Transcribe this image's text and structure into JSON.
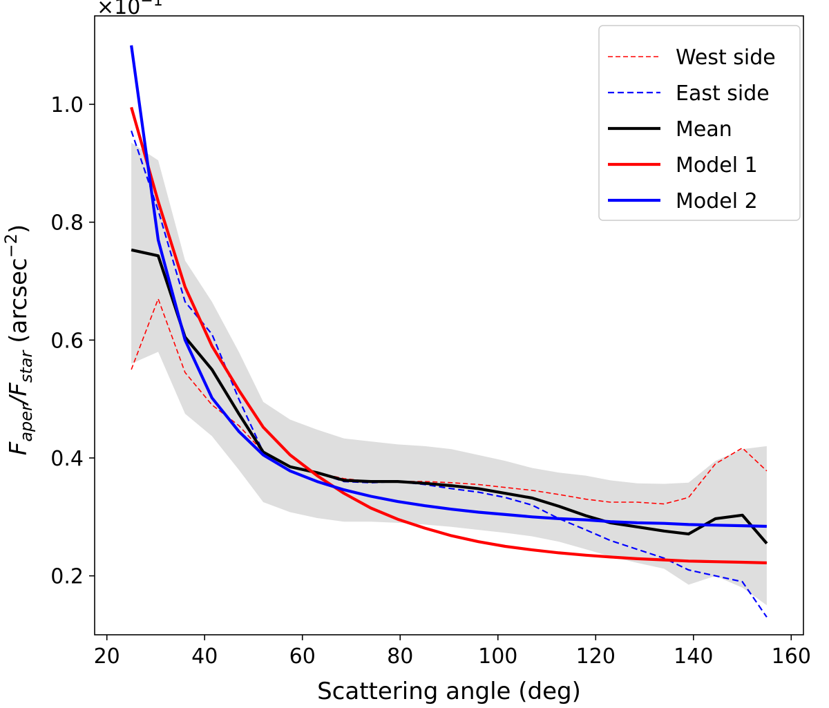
{
  "chart_data": {
    "type": "line",
    "xlabel": "Scattering angle (deg)",
    "ylabel_main": "F",
    "ylabel_sub1": "aper",
    "ylabel_mid": "/F",
    "ylabel_sub2": "star",
    "ylabel_unit_prefix": " (arcsec",
    "ylabel_unit_exp": "−2",
    "ylabel_unit_suffix": ")",
    "offset_base": "×10",
    "offset_exp": "−1",
    "xlim": [
      17.5,
      162.5
    ],
    "ylim": [
      0.1,
      1.15
    ],
    "x_ticks": [
      20,
      40,
      60,
      80,
      100,
      120,
      140,
      160
    ],
    "x_tick_labels": [
      "20",
      "40",
      "60",
      "80",
      "100",
      "120",
      "140",
      "160"
    ],
    "y_ticks": [
      0.2,
      0.4,
      0.6,
      0.8,
      1.0
    ],
    "y_tick_labels": [
      "0.2",
      "0.4",
      "0.6",
      "0.8",
      "1.0"
    ],
    "band": {
      "color": "#dedede",
      "x": [
        25,
        30.5,
        36,
        41.5,
        47,
        52,
        57.5,
        63,
        68.5,
        74,
        79.5,
        85,
        90.5,
        96,
        101.5,
        107,
        112.5,
        118,
        123,
        128.5,
        134,
        139,
        144.5,
        150,
        155
      ],
      "upper": [
        0.935,
        0.905,
        0.735,
        0.665,
        0.58,
        0.495,
        0.465,
        0.448,
        0.433,
        0.428,
        0.423,
        0.42,
        0.415,
        0.405,
        0.395,
        0.383,
        0.375,
        0.37,
        0.362,
        0.357,
        0.356,
        0.358,
        0.395,
        0.415,
        0.42
      ],
      "lower": [
        0.56,
        0.58,
        0.475,
        0.437,
        0.38,
        0.325,
        0.308,
        0.298,
        0.292,
        0.292,
        0.29,
        0.287,
        0.283,
        0.278,
        0.273,
        0.267,
        0.258,
        0.245,
        0.233,
        0.222,
        0.212,
        0.185,
        0.2,
        0.18,
        0.15
      ]
    },
    "series": [
      {
        "name": "West side",
        "color": "#ff0000",
        "style": "dashed-thin",
        "x": [
          25,
          30.5,
          36,
          41.5,
          47,
          52,
          57.5,
          63,
          68.5,
          74,
          79.5,
          85,
          90.5,
          96,
          101.5,
          107,
          112.5,
          118,
          123,
          128.5,
          134,
          139,
          144.5,
          150,
          155
        ],
        "values": [
          0.55,
          0.67,
          0.545,
          0.49,
          0.455,
          0.41,
          0.385,
          0.375,
          0.365,
          0.36,
          0.36,
          0.36,
          0.358,
          0.355,
          0.35,
          0.345,
          0.338,
          0.33,
          0.325,
          0.325,
          0.322,
          0.333,
          0.39,
          0.417,
          0.378
        ]
      },
      {
        "name": "East side",
        "color": "#0000ff",
        "style": "dashed",
        "x": [
          25,
          30.5,
          36,
          41.5,
          47,
          52,
          57.5,
          63,
          68.5,
          74,
          79.5,
          85,
          90.5,
          96,
          101.5,
          107,
          112.5,
          118,
          123,
          128.5,
          134,
          139,
          144.5,
          150,
          155
        ],
        "values": [
          0.955,
          0.82,
          0.665,
          0.61,
          0.5,
          0.41,
          0.385,
          0.375,
          0.36,
          0.358,
          0.36,
          0.355,
          0.348,
          0.342,
          0.333,
          0.32,
          0.297,
          0.278,
          0.26,
          0.245,
          0.23,
          0.21,
          0.2,
          0.19,
          0.13
        ]
      },
      {
        "name": "Mean",
        "color": "#000000",
        "style": "solid",
        "x": [
          25,
          30.5,
          36,
          41.5,
          47,
          52,
          57.5,
          63,
          68.5,
          74,
          79.5,
          85,
          90.5,
          96,
          101.5,
          107,
          112.5,
          118,
          123,
          128.5,
          134,
          139,
          144.5,
          150,
          155
        ],
        "values": [
          0.753,
          0.743,
          0.605,
          0.55,
          0.475,
          0.41,
          0.385,
          0.375,
          0.362,
          0.36,
          0.36,
          0.357,
          0.353,
          0.348,
          0.34,
          0.332,
          0.318,
          0.302,
          0.29,
          0.283,
          0.276,
          0.271,
          0.297,
          0.303,
          0.255
        ]
      },
      {
        "name": "Model 1",
        "color": "#ff0000",
        "style": "solid",
        "x": [
          25,
          30.5,
          36,
          41.5,
          47,
          52,
          57.5,
          63,
          68.5,
          74,
          79.5,
          85,
          90.5,
          96,
          101.5,
          107,
          112.5,
          118,
          123,
          128.5,
          134,
          139,
          144.5,
          150,
          155
        ],
        "values": [
          0.995,
          0.835,
          0.69,
          0.59,
          0.515,
          0.452,
          0.405,
          0.37,
          0.34,
          0.315,
          0.296,
          0.281,
          0.268,
          0.258,
          0.25,
          0.244,
          0.239,
          0.235,
          0.232,
          0.229,
          0.227,
          0.225,
          0.224,
          0.223,
          0.222
        ]
      },
      {
        "name": "Model 2",
        "color": "#0000ff",
        "style": "solid",
        "x": [
          25,
          30.5,
          36,
          41.5,
          47,
          52,
          57.5,
          63,
          68.5,
          74,
          79.5,
          85,
          90.5,
          96,
          101.5,
          107,
          112.5,
          118,
          123,
          128.5,
          134,
          139,
          144.5,
          150,
          155
        ],
        "values": [
          1.1,
          0.77,
          0.6,
          0.502,
          0.445,
          0.405,
          0.378,
          0.36,
          0.346,
          0.335,
          0.326,
          0.319,
          0.313,
          0.308,
          0.304,
          0.3,
          0.297,
          0.295,
          0.292,
          0.29,
          0.289,
          0.287,
          0.286,
          0.285,
          0.284
        ]
      }
    ],
    "legend": {
      "placement": "top-right",
      "entries": [
        "West side",
        "East side",
        "Mean",
        "Model 1",
        "Model 2"
      ]
    },
    "grid": false
  }
}
